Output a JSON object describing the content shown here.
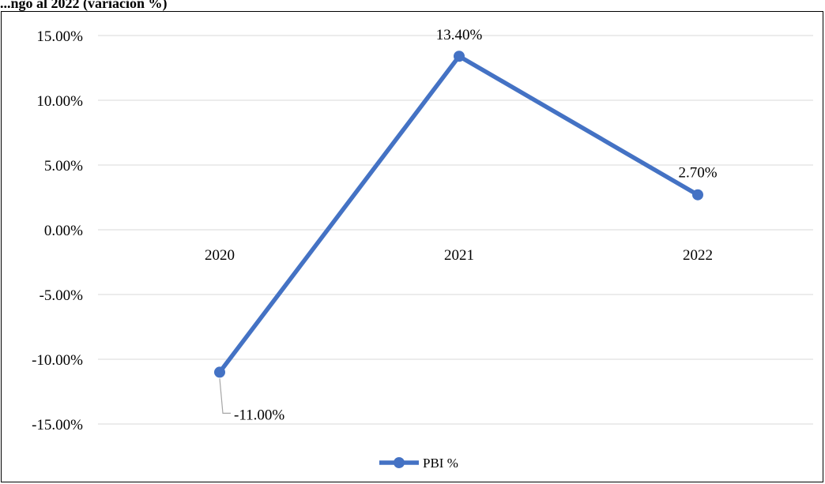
{
  "caption": "...ngo al 2022 (variación %)",
  "chart_data": {
    "type": "line",
    "title": "",
    "xlabel": "",
    "ylabel": "",
    "categories": [
      "2020",
      "2021",
      "2022"
    ],
    "series": [
      {
        "name": "PBI %",
        "values": [
          -11.0,
          13.4,
          2.7
        ],
        "data_labels": [
          "-11.00%",
          "13.40%",
          "2.70%"
        ],
        "color": "#4472C4"
      }
    ],
    "ylim": [
      -15,
      15
    ],
    "y_ticks": [
      15,
      10,
      5,
      0,
      -5,
      -10,
      -15
    ],
    "y_tick_labels": [
      "15.00%",
      "10.00%",
      "5.00%",
      "0.00%",
      "-5.00%",
      "-10.00%",
      "-15.00%"
    ],
    "grid": true,
    "legend": "bottom-center",
    "gridline_color": "#d9d9d9",
    "leader_line_color": "#a6a6a6"
  }
}
